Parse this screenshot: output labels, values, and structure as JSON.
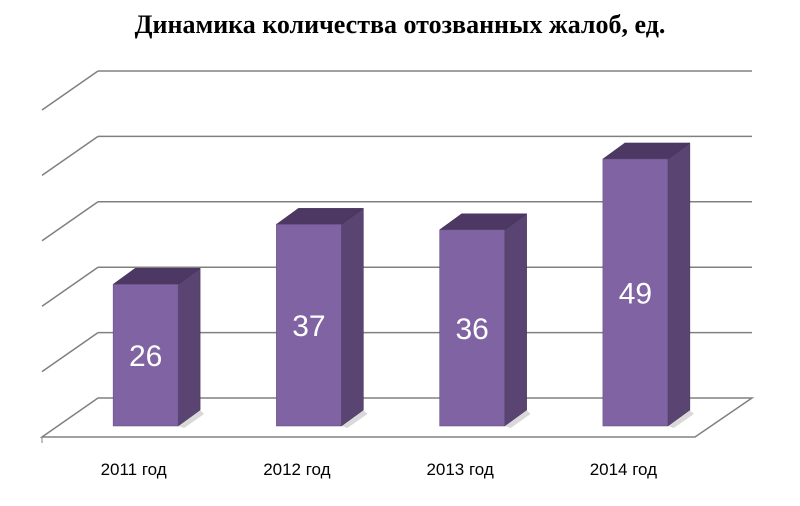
{
  "chart_data": {
    "type": "bar",
    "title": "Динамика количества отозванных жалоб, ед.",
    "xlabel": "",
    "ylabel": "",
    "categories": [
      "2011 год",
      "2012 год",
      "2013 год",
      "2014 год"
    ],
    "values": [
      26,
      37,
      36,
      49
    ],
    "data_labels": [
      "26",
      "37",
      "36",
      "49"
    ],
    "ylim": [
      0,
      60
    ],
    "grid": true,
    "legend": "none",
    "style": "3d-column"
  },
  "colors": {
    "bar_front": "#7f63a2",
    "bar_side": "#5a4472",
    "bar_top": "#4d3863",
    "grid": "#808080"
  }
}
